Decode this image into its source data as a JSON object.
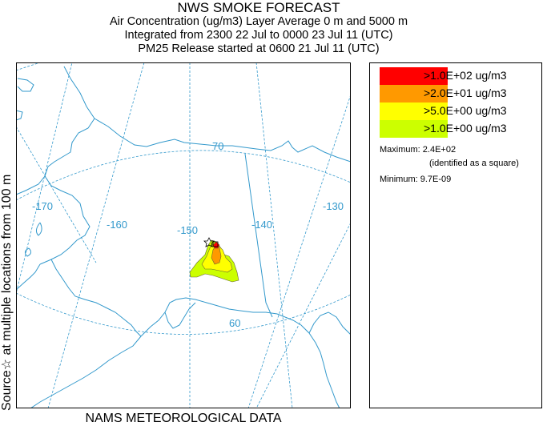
{
  "header": {
    "title": "NWS SMOKE FORECAST",
    "line1": "Air Concentration (ug/m3) Layer Average    0 m and  5000 m",
    "line2": "Integrated from 2300 22 Jul to 0000 23 Jul 11 (UTC)",
    "line3": "PM25 Release started at 0600 21 Jul 11 (UTC)"
  },
  "side_label": "Source☆ at multiple locations  from   100 m",
  "footer": "NAMS METEOROLOGICAL DATA",
  "map": {
    "region": "Alaska",
    "longitude_labels": [
      "-170",
      "-160",
      "-150",
      "-140",
      "-130"
    ],
    "latitude_labels": [
      "70",
      "60"
    ],
    "colors": {
      "coast": "#3399cc",
      "grid": "#3399cc",
      "border": "#3399cc"
    }
  },
  "legend": {
    "items": [
      {
        "label": ">1.0E+02 ug/m3",
        "color": "#ff0000"
      },
      {
        "label": ">2.0E+01 ug/m3",
        "color": "#ff9900"
      },
      {
        "label": ">5.0E+00 ug/m3",
        "color": "#ffff00"
      },
      {
        "label": ">1.0E+00 ug/m3",
        "color": "#ccff00"
      }
    ],
    "maximum": "Maximum: 2.4E+02",
    "maximum_note": "(identified as a square)",
    "minimum": "Minimum: 9.7E-09"
  }
}
